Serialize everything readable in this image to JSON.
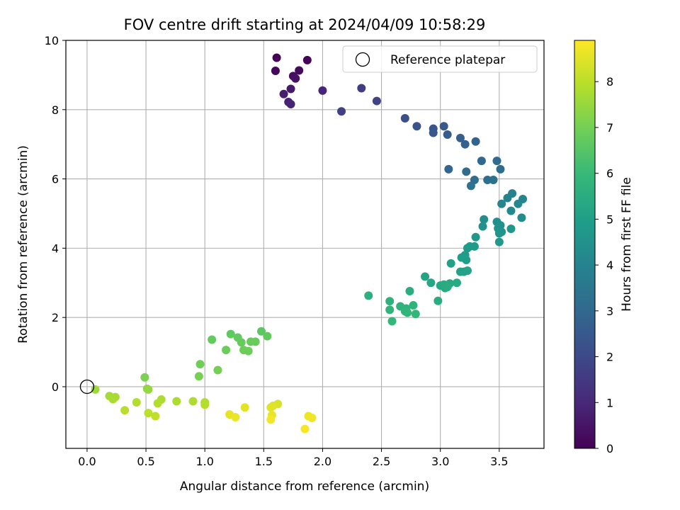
{
  "chart_data": {
    "type": "scatter",
    "title": "FOV centre drift starting at 2024/04/09 10:58:29",
    "xlabel": "Angular distance from reference (arcmin)",
    "ylabel": "Rotation from reference (arcmin)",
    "xlim": [
      -0.18,
      3.88
    ],
    "ylim": [
      -1.78,
      10.0
    ],
    "xticks": [
      0.0,
      0.5,
      1.0,
      1.5,
      2.0,
      2.5,
      3.0,
      3.5
    ],
    "xtick_labels": [
      "0.0",
      "0.5",
      "1.0",
      "1.5",
      "2.0",
      "2.5",
      "3.0",
      "3.5"
    ],
    "yticks": [
      0,
      2,
      4,
      6,
      8,
      10
    ],
    "ytick_labels": [
      "0",
      "2",
      "4",
      "6",
      "8",
      "10"
    ],
    "grid": true,
    "legend": {
      "placement": "top-right",
      "entries": [
        "Reference platepar"
      ]
    },
    "reference_point": {
      "x": 0.0,
      "y": 0.0,
      "marker": "open-circle"
    },
    "colorbar": {
      "label": "Hours from first FF file",
      "colormap": "viridis",
      "range": [
        0,
        8.9
      ],
      "ticks": [
        0,
        1,
        2,
        3,
        4,
        5,
        6,
        7,
        8
      ],
      "tick_labels": [
        "0",
        "1",
        "2",
        "3",
        "4",
        "5",
        "6",
        "7",
        "8"
      ]
    },
    "colormap_stops": [
      "#440154",
      "#482878",
      "#3e4989",
      "#31688e",
      "#26828e",
      "#1f9e89",
      "#35b779",
      "#6ece58",
      "#b5de2b",
      "#fde725"
    ],
    "points": [
      {
        "x": 1.61,
        "y": 9.5,
        "t": 0.05
      },
      {
        "x": 1.87,
        "y": 9.43,
        "t": 0.1
      },
      {
        "x": 1.6,
        "y": 9.12,
        "t": 0.15
      },
      {
        "x": 1.8,
        "y": 9.13,
        "t": 0.25
      },
      {
        "x": 1.75,
        "y": 8.97,
        "t": 0.35
      },
      {
        "x": 1.77,
        "y": 8.9,
        "t": 0.4
      },
      {
        "x": 1.73,
        "y": 8.6,
        "t": 0.6
      },
      {
        "x": 1.67,
        "y": 8.45,
        "t": 0.7
      },
      {
        "x": 1.71,
        "y": 8.22,
        "t": 0.8
      },
      {
        "x": 1.73,
        "y": 8.16,
        "t": 0.85
      },
      {
        "x": 2.0,
        "y": 8.55,
        "t": 0.95
      },
      {
        "x": 2.33,
        "y": 8.62,
        "t": 1.6
      },
      {
        "x": 2.16,
        "y": 7.95,
        "t": 1.7
      },
      {
        "x": 2.46,
        "y": 8.25,
        "t": 1.8
      },
      {
        "x": 2.7,
        "y": 7.75,
        "t": 2.2
      },
      {
        "x": 2.8,
        "y": 7.52,
        "t": 2.3
      },
      {
        "x": 2.94,
        "y": 7.45,
        "t": 2.4
      },
      {
        "x": 2.94,
        "y": 7.33,
        "t": 2.45
      },
      {
        "x": 3.03,
        "y": 7.52,
        "t": 2.5
      },
      {
        "x": 3.06,
        "y": 7.28,
        "t": 2.6
      },
      {
        "x": 3.17,
        "y": 7.18,
        "t": 2.7
      },
      {
        "x": 3.21,
        "y": 7.0,
        "t": 2.75
      },
      {
        "x": 3.3,
        "y": 7.08,
        "t": 2.8
      },
      {
        "x": 3.07,
        "y": 6.28,
        "t": 2.9
      },
      {
        "x": 3.35,
        "y": 6.52,
        "t": 3.0
      },
      {
        "x": 3.48,
        "y": 6.52,
        "t": 3.05
      },
      {
        "x": 3.22,
        "y": 6.21,
        "t": 3.1
      },
      {
        "x": 3.51,
        "y": 6.28,
        "t": 3.15
      },
      {
        "x": 3.29,
        "y": 5.97,
        "t": 3.2
      },
      {
        "x": 3.4,
        "y": 5.97,
        "t": 3.25
      },
      {
        "x": 3.45,
        "y": 5.97,
        "t": 3.3
      },
      {
        "x": 3.26,
        "y": 5.8,
        "t": 3.35
      },
      {
        "x": 3.61,
        "y": 5.58,
        "t": 3.9
      },
      {
        "x": 3.57,
        "y": 5.45,
        "t": 4.0
      },
      {
        "x": 3.7,
        "y": 5.42,
        "t": 4.05
      },
      {
        "x": 3.52,
        "y": 5.28,
        "t": 4.1
      },
      {
        "x": 3.66,
        "y": 5.28,
        "t": 4.15
      },
      {
        "x": 3.6,
        "y": 5.08,
        "t": 4.2
      },
      {
        "x": 3.69,
        "y": 4.88,
        "t": 4.3
      },
      {
        "x": 3.37,
        "y": 4.83,
        "t": 4.35
      },
      {
        "x": 3.48,
        "y": 4.76,
        "t": 4.4
      },
      {
        "x": 3.36,
        "y": 4.63,
        "t": 4.45
      },
      {
        "x": 3.51,
        "y": 4.66,
        "t": 4.5
      },
      {
        "x": 3.49,
        "y": 4.57,
        "t": 4.55
      },
      {
        "x": 3.52,
        "y": 4.47,
        "t": 4.6
      },
      {
        "x": 3.5,
        "y": 4.43,
        "t": 4.62
      },
      {
        "x": 3.6,
        "y": 4.56,
        "t": 4.65
      },
      {
        "x": 3.3,
        "y": 4.32,
        "t": 4.7
      },
      {
        "x": 3.5,
        "y": 4.18,
        "t": 4.72
      },
      {
        "x": 3.25,
        "y": 4.05,
        "t": 4.8
      },
      {
        "x": 3.29,
        "y": 4.05,
        "t": 4.85
      },
      {
        "x": 3.23,
        "y": 4.0,
        "t": 4.88
      },
      {
        "x": 3.21,
        "y": 3.8,
        "t": 4.9
      },
      {
        "x": 3.18,
        "y": 3.73,
        "t": 4.95
      },
      {
        "x": 3.22,
        "y": 3.66,
        "t": 5.0
      },
      {
        "x": 3.09,
        "y": 3.56,
        "t": 5.05
      },
      {
        "x": 3.17,
        "y": 3.32,
        "t": 5.1
      },
      {
        "x": 3.2,
        "y": 3.32,
        "t": 5.12
      },
      {
        "x": 3.23,
        "y": 3.35,
        "t": 5.15
      },
      {
        "x": 2.87,
        "y": 3.18,
        "t": 5.2
      },
      {
        "x": 2.92,
        "y": 3.0,
        "t": 5.25
      },
      {
        "x": 3.0,
        "y": 2.92,
        "t": 5.3
      },
      {
        "x": 3.04,
        "y": 2.85,
        "t": 5.35
      },
      {
        "x": 3.08,
        "y": 2.98,
        "t": 5.38
      },
      {
        "x": 3.14,
        "y": 3.0,
        "t": 5.4
      },
      {
        "x": 3.03,
        "y": 2.95,
        "t": 5.42
      },
      {
        "x": 3.06,
        "y": 2.88,
        "t": 5.45
      },
      {
        "x": 2.98,
        "y": 2.48,
        "t": 5.5
      },
      {
        "x": 2.74,
        "y": 2.76,
        "t": 5.55
      },
      {
        "x": 2.39,
        "y": 2.63,
        "t": 5.6
      },
      {
        "x": 2.57,
        "y": 2.47,
        "t": 5.65
      },
      {
        "x": 2.66,
        "y": 2.32,
        "t": 5.7
      },
      {
        "x": 2.77,
        "y": 2.35,
        "t": 5.72
      },
      {
        "x": 2.71,
        "y": 2.26,
        "t": 5.75
      },
      {
        "x": 2.57,
        "y": 2.22,
        "t": 5.78
      },
      {
        "x": 2.7,
        "y": 2.18,
        "t": 5.8
      },
      {
        "x": 2.72,
        "y": 2.14,
        "t": 5.82
      },
      {
        "x": 2.79,
        "y": 2.1,
        "t": 5.85
      },
      {
        "x": 2.59,
        "y": 1.89,
        "t": 5.9
      },
      {
        "x": 1.48,
        "y": 1.6,
        "t": 6.6
      },
      {
        "x": 1.22,
        "y": 1.52,
        "t": 6.65
      },
      {
        "x": 1.28,
        "y": 1.42,
        "t": 6.7
      },
      {
        "x": 1.53,
        "y": 1.46,
        "t": 6.72
      },
      {
        "x": 1.06,
        "y": 1.36,
        "t": 6.75
      },
      {
        "x": 1.31,
        "y": 1.28,
        "t": 6.78
      },
      {
        "x": 1.39,
        "y": 1.3,
        "t": 6.8
      },
      {
        "x": 1.43,
        "y": 1.3,
        "t": 6.82
      },
      {
        "x": 1.18,
        "y": 1.06,
        "t": 6.85
      },
      {
        "x": 1.33,
        "y": 1.06,
        "t": 6.88
      },
      {
        "x": 1.37,
        "y": 1.03,
        "t": 6.9
      },
      {
        "x": 0.96,
        "y": 0.65,
        "t": 6.95
      },
      {
        "x": 1.11,
        "y": 0.48,
        "t": 7.0
      },
      {
        "x": 0.95,
        "y": 0.3,
        "t": 7.05
      },
      {
        "x": 0.49,
        "y": 0.27,
        "t": 7.1
      },
      {
        "x": 0.51,
        "y": -0.06,
        "t": 7.4
      },
      {
        "x": 0.52,
        "y": -0.08,
        "t": 7.45
      },
      {
        "x": 0.07,
        "y": -0.08,
        "t": 7.6
      },
      {
        "x": 0.19,
        "y": -0.27,
        "t": 7.7
      },
      {
        "x": 0.24,
        "y": -0.3,
        "t": 7.72
      },
      {
        "x": 0.22,
        "y": -0.36,
        "t": 7.75
      },
      {
        "x": 0.63,
        "y": -0.37,
        "t": 7.78
      },
      {
        "x": 0.76,
        "y": -0.42,
        "t": 7.8
      },
      {
        "x": 0.9,
        "y": -0.42,
        "t": 7.82
      },
      {
        "x": 1.0,
        "y": -0.45,
        "t": 7.84
      },
      {
        "x": 0.6,
        "y": -0.48,
        "t": 7.86
      },
      {
        "x": 0.42,
        "y": -0.45,
        "t": 7.88
      },
      {
        "x": 1.0,
        "y": -0.52,
        "t": 7.9
      },
      {
        "x": 0.32,
        "y": -0.68,
        "t": 7.95
      },
      {
        "x": 0.52,
        "y": -0.76,
        "t": 8.0
      },
      {
        "x": 0.58,
        "y": -0.85,
        "t": 8.05
      },
      {
        "x": 1.62,
        "y": -0.5,
        "t": 8.4
      },
      {
        "x": 1.58,
        "y": -0.55,
        "t": 8.45
      },
      {
        "x": 1.56,
        "y": -0.6,
        "t": 8.5
      },
      {
        "x": 1.34,
        "y": -0.6,
        "t": 8.55
      },
      {
        "x": 1.21,
        "y": -0.8,
        "t": 8.6
      },
      {
        "x": 1.57,
        "y": -0.82,
        "t": 8.62
      },
      {
        "x": 1.26,
        "y": -0.88,
        "t": 8.65
      },
      {
        "x": 1.88,
        "y": -0.85,
        "t": 8.7
      },
      {
        "x": 1.91,
        "y": -0.9,
        "t": 8.72
      },
      {
        "x": 1.56,
        "y": -0.95,
        "t": 8.75
      },
      {
        "x": 1.85,
        "y": -1.22,
        "t": 8.8
      }
    ]
  }
}
